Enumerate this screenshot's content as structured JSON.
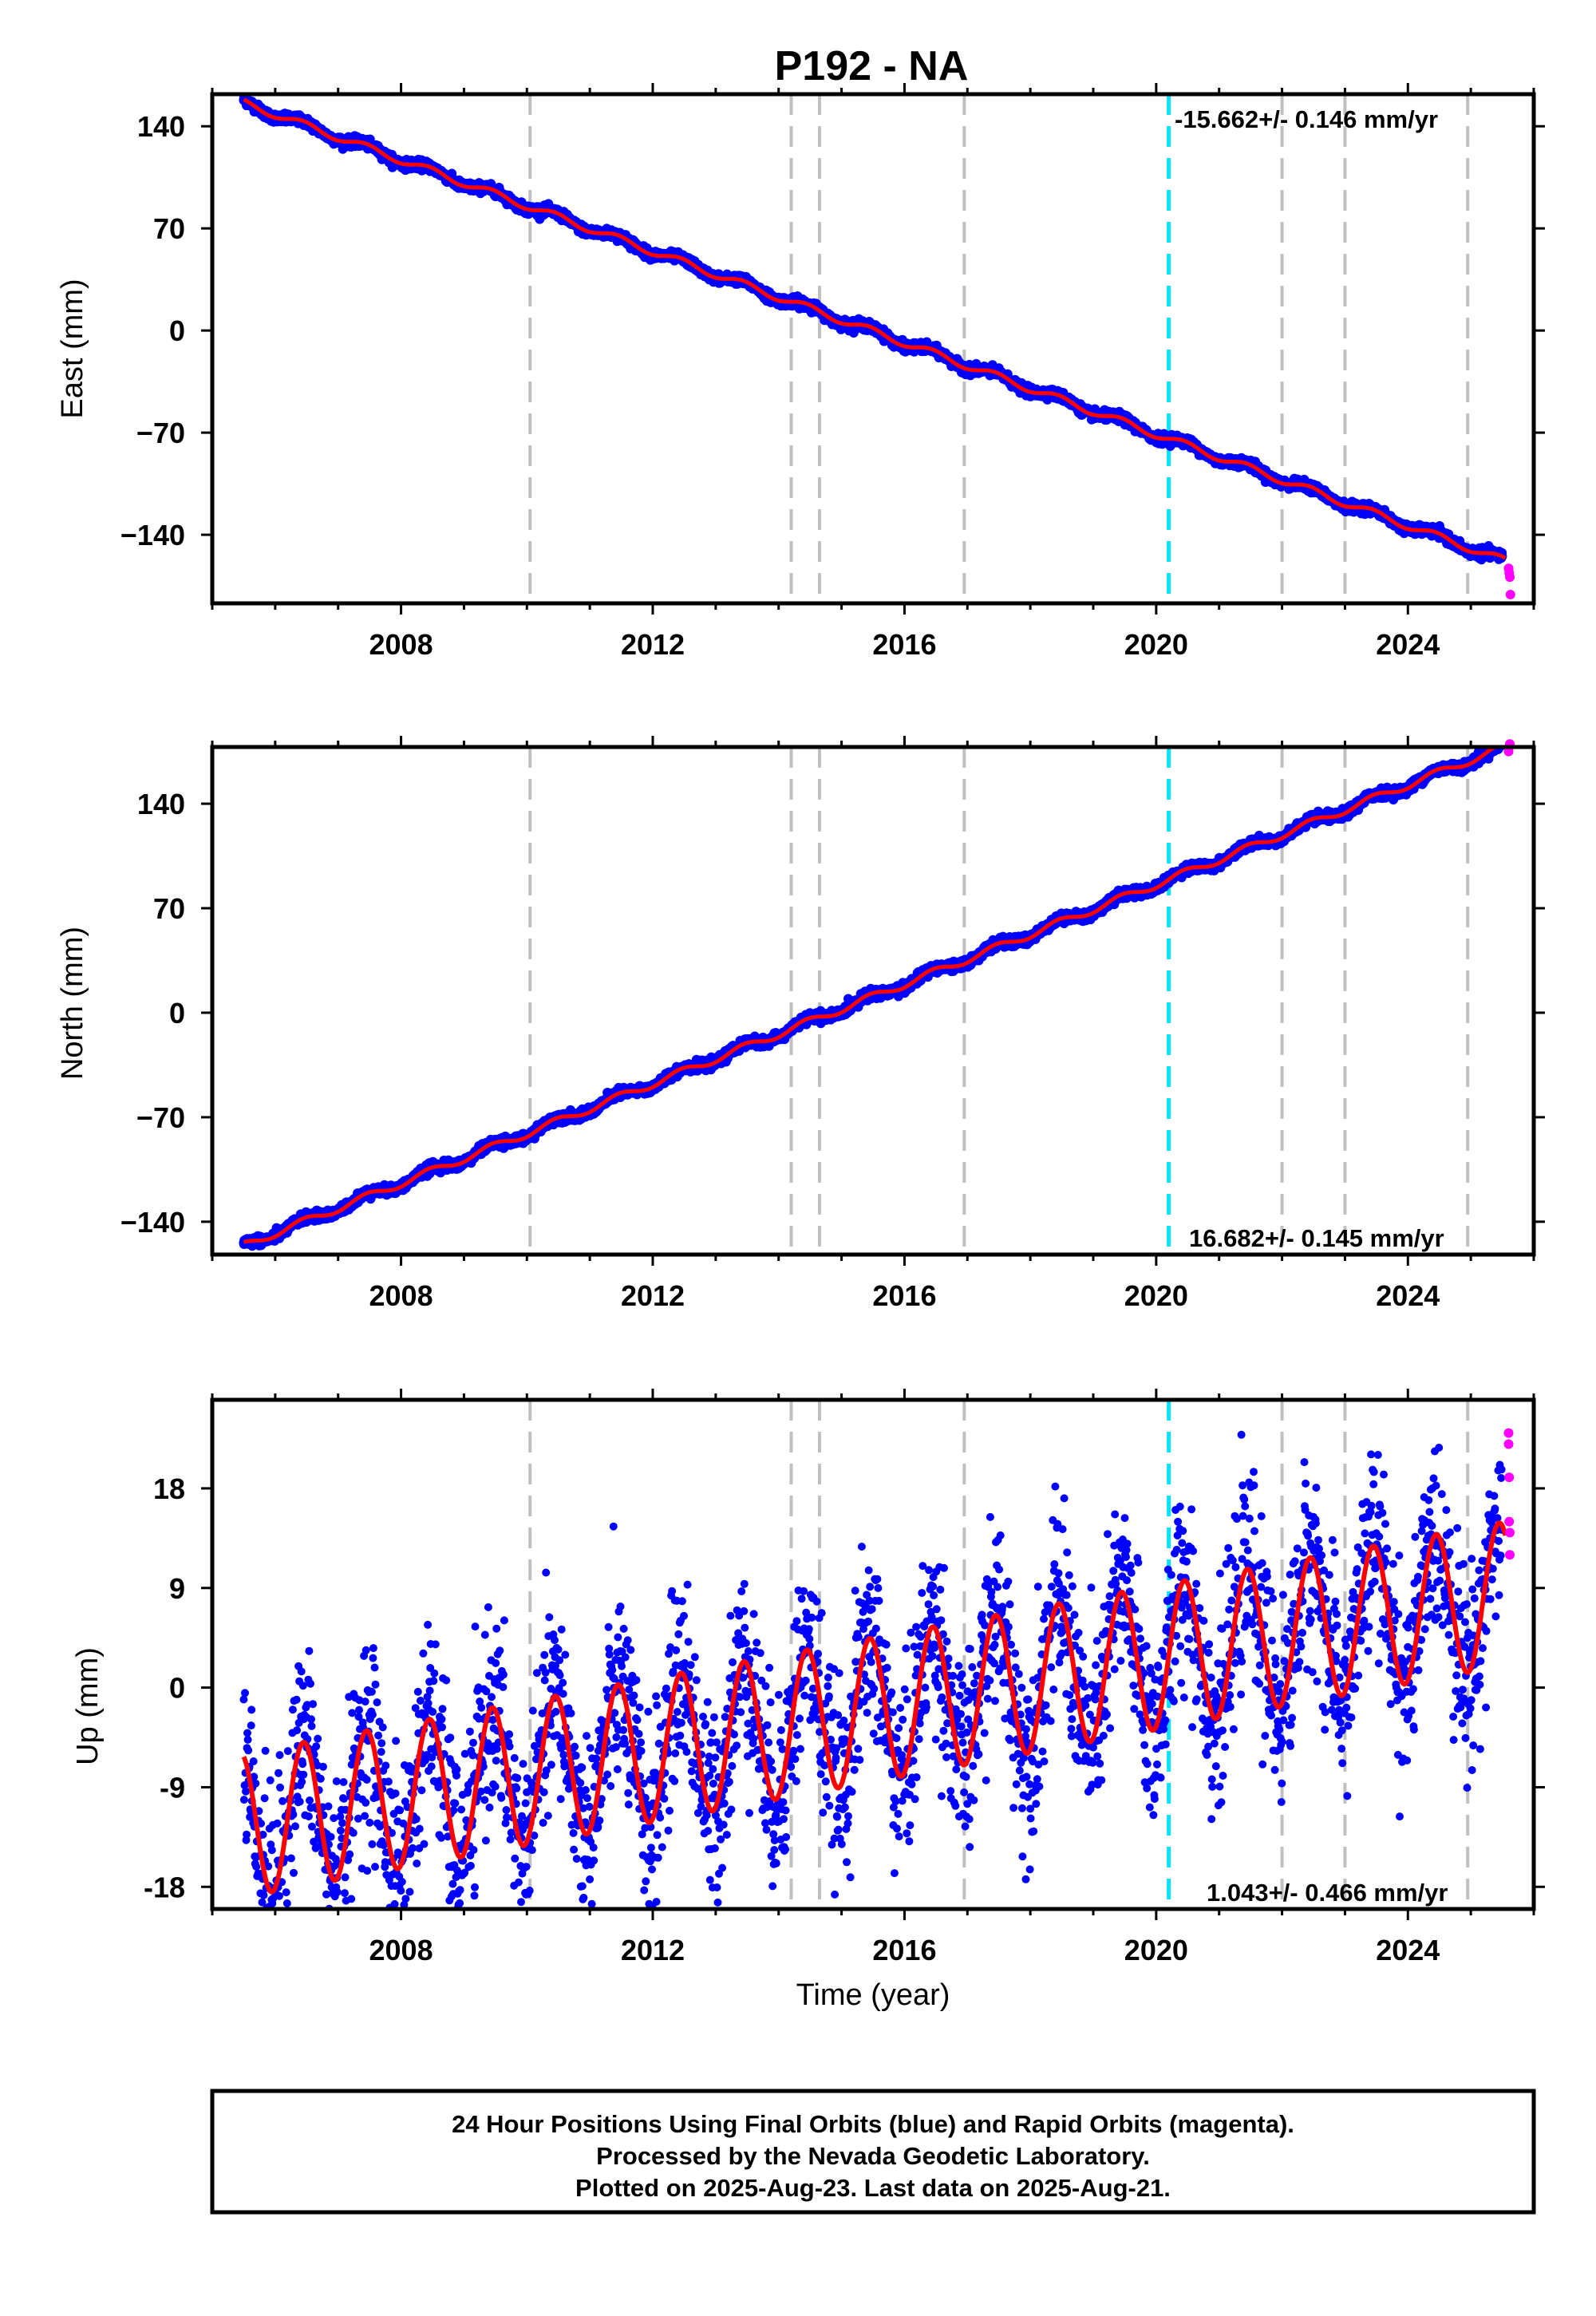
{
  "title": "P192 - NA",
  "colors": {
    "final": "#0000ff",
    "rapid": "#ff00ff",
    "model": "#ff0000",
    "cyan": "#00e5ff",
    "grey": "#c0c0c0",
    "frame": "#000000"
  },
  "chart_data": [
    {
      "type": "scatter",
      "ylabel": "East (mm)",
      "ylim": [
        -187,
        162
      ],
      "yticks": [
        140,
        70,
        0,
        -70,
        -140
      ],
      "ytick_labels": [
        "140",
        "70",
        "0",
        "−70",
        "−140"
      ],
      "xlim": [
        2005.0,
        2026.0
      ],
      "xticks": [
        2008,
        2012,
        2016,
        2020,
        2024
      ],
      "xtick_labels": [
        "2008",
        "2012",
        "2016",
        "2020",
        "2024"
      ],
      "rate_label": "-15.662+/- 0.146 mm/yr",
      "rate_position": "top-right",
      "trend": {
        "t0": 2005.5,
        "y0": 156,
        "slope": -15.662,
        "annual_amplitude": 2.5
      },
      "series": [
        {
          "kind": "final",
          "x_range": [
            2005.5,
            2025.5
          ],
          "noise_sd": 1.5
        },
        {
          "kind": "rapid",
          "x": [
            2025.6,
            2025.61,
            2025.62,
            2025.63
          ],
          "y": [
            -163,
            -166,
            -169,
            -181
          ]
        }
      ]
    },
    {
      "type": "scatter",
      "ylabel": "North (mm)",
      "ylim": [
        -162,
        178
      ],
      "yticks": [
        140,
        70,
        0,
        -70,
        -140
      ],
      "ytick_labels": [
        "140",
        "70",
        "0",
        "−70",
        "−140"
      ],
      "xlim": [
        2005.0,
        2026.0
      ],
      "xticks": [
        2008,
        2012,
        2016,
        2020,
        2024
      ],
      "xtick_labels": [
        "2008",
        "2012",
        "2016",
        "2020",
        "2024"
      ],
      "rate_label": "16.682+/- 0.145 mm/yr",
      "rate_position": "bottom-right",
      "trend": {
        "t0": 2005.5,
        "y0": -156,
        "slope": 16.682,
        "annual_amplitude": 2.5
      },
      "series": [
        {
          "kind": "final",
          "x_range": [
            2005.5,
            2025.5
          ],
          "noise_sd": 1.5
        },
        {
          "kind": "rapid",
          "x": [
            2025.6,
            2025.61,
            2025.62
          ],
          "y": [
            175,
            178,
            180
          ]
        }
      ]
    },
    {
      "type": "scatter",
      "ylabel": "Up (mm)",
      "xlabel": "Time (year)",
      "ylim": [
        -20,
        26
      ],
      "yticks": [
        18,
        9,
        0,
        -9,
        -18
      ],
      "ytick_labels": [
        "18",
        "9",
        "0",
        "-9",
        "-18"
      ],
      "xlim": [
        2005.0,
        2026.0
      ],
      "xticks": [
        2008,
        2012,
        2016,
        2020,
        2024
      ],
      "xtick_labels": [
        "2008",
        "2012",
        "2016",
        "2020",
        "2024"
      ],
      "rate_label": "1.043+/- 0.466 mm/yr",
      "rate_position": "bottom-right",
      "trend": {
        "t0": 2015.5,
        "y0": -2,
        "slope": 1.043,
        "annual_amplitude": 6.5
      },
      "series": [
        {
          "kind": "final",
          "x_range": [
            2005.5,
            2025.5
          ],
          "noise_sd": 4.2
        },
        {
          "kind": "rapid",
          "x": [
            2025.6,
            2025.6,
            2025.61,
            2025.61,
            2025.62,
            2025.62
          ],
          "y": [
            23,
            22,
            19,
            15,
            14,
            12
          ]
        }
      ]
    }
  ],
  "event_lines": {
    "grey": [
      2010.05,
      2014.2,
      2014.65,
      2016.95,
      2022.0,
      2023.0,
      2024.95
    ],
    "cyan": [
      2020.2
    ]
  },
  "footer": {
    "line1": "24 Hour Positions Using Final Orbits (blue) and Rapid Orbits (magenta).",
    "line2": "Processed by the Nevada Geodetic Laboratory.",
    "line3": "Plotted on 2025-Aug-23. Last data on 2025-Aug-21."
  }
}
